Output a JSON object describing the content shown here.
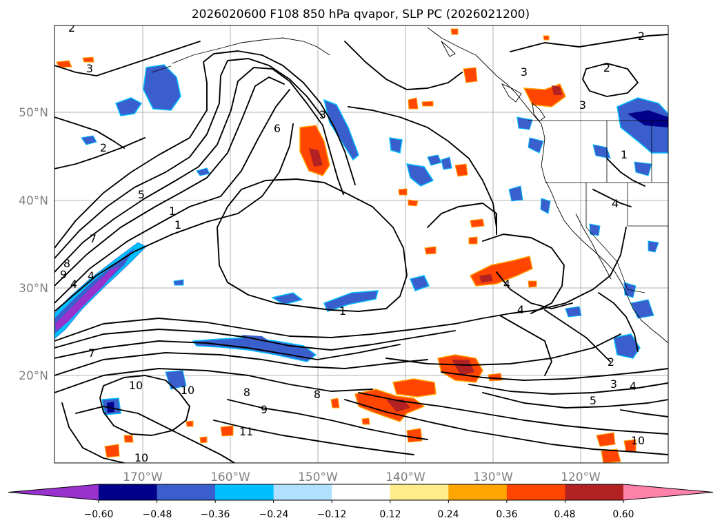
{
  "title": "2026020600 F108 850 hPa qvapor, SLP PC (2026021200)",
  "map": {
    "lat_labels": [
      "50°N",
      "40°N",
      "30°N",
      "20°N"
    ],
    "lon_labels": [
      "170°W",
      "160°W",
      "150°W",
      "140°W",
      "130°W",
      "120°W"
    ],
    "gridlines": true
  },
  "contour_labels": [
    "2",
    "2",
    "2",
    "2",
    "3",
    "3",
    "3",
    "3",
    "6",
    "5",
    "1",
    "1",
    "7",
    "8",
    "9",
    "4",
    "4",
    "4",
    "4",
    "1",
    "1",
    "4",
    "7",
    "8",
    "8",
    "9",
    "10",
    "10",
    "10",
    "11",
    "10",
    "2",
    "3",
    "4",
    "5"
  ],
  "colorbar": {
    "colors": [
      "#9932cc",
      "#00008b",
      "#3a5fcd",
      "#00bfff",
      "#b0e2ff",
      "#ffffff",
      "#ffec8b",
      "#ffa500",
      "#ff4500",
      "#b22222",
      "#ff82ab"
    ],
    "tick_labels": [
      "−0.60",
      "−0.48",
      "−0.36",
      "−0.24",
      "−0.12",
      "0.12",
      "0.24",
      "0.36",
      "0.48",
      "0.60"
    ],
    "extend": "both"
  }
}
